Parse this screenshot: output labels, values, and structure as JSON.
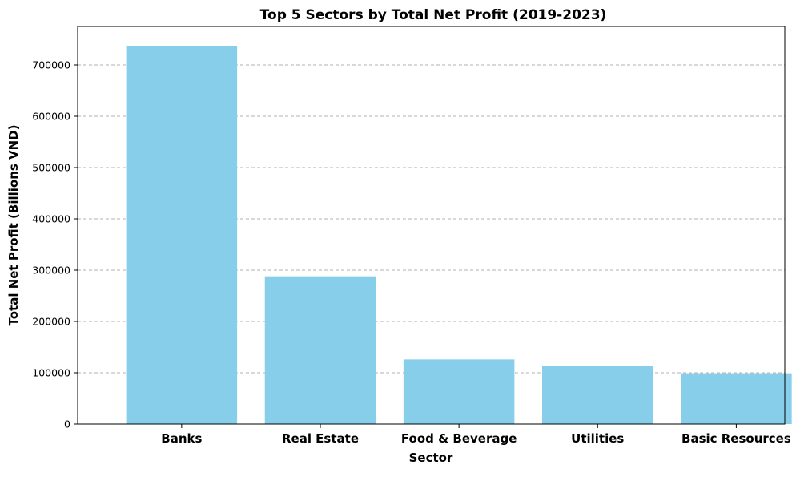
{
  "chart_data": {
    "type": "bar",
    "title": "Top 5 Sectors by Total Net Profit (2019-2023)",
    "xlabel": "Sector",
    "ylabel": "Total Net Profit (Billions VND)",
    "categories": [
      "Banks",
      "Real Estate",
      "Food & Beverage",
      "Utilities",
      "Basic Resources"
    ],
    "values": [
      737000,
      288000,
      126000,
      114000,
      99000
    ],
    "ylim": [
      0,
      775000
    ],
    "yticks": [
      0,
      100000,
      200000,
      300000,
      400000,
      500000,
      600000,
      700000
    ],
    "ytick_labels": [
      "0",
      "100000",
      "200000",
      "300000",
      "400000",
      "500000",
      "600000",
      "700000"
    ],
    "grid": "y-dashed",
    "bar_color": "#87ceeb",
    "grid_color": "#b0b0b0"
  }
}
